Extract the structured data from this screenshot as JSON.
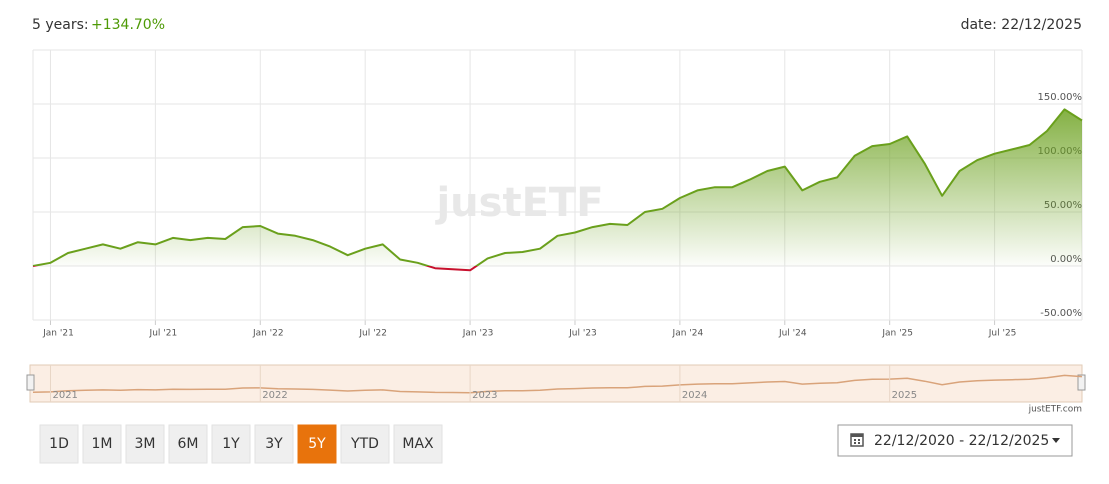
{
  "header": {
    "period": "5 years:",
    "change": "+134.70%",
    "date": "date: 22/12/2025"
  },
  "chart_data": {
    "type": "line",
    "watermark": "justETF",
    "x": [
      "2020-12",
      "2021-01",
      "2021-02",
      "2021-03",
      "2021-04",
      "2021-05",
      "2021-06",
      "2021-07",
      "2021-08",
      "2021-09",
      "2021-10",
      "2021-11",
      "2021-12",
      "2022-01",
      "2022-02",
      "2022-03",
      "2022-04",
      "2022-05",
      "2022-06",
      "2022-07",
      "2022-08",
      "2022-09",
      "2022-10",
      "2022-11",
      "2022-12",
      "2023-01",
      "2023-02",
      "2023-03",
      "2023-04",
      "2023-05",
      "2023-06",
      "2023-07",
      "2023-08",
      "2023-09",
      "2023-10",
      "2023-11",
      "2023-12",
      "2024-01",
      "2024-02",
      "2024-03",
      "2024-04",
      "2024-05",
      "2024-06",
      "2024-07",
      "2024-08",
      "2024-09",
      "2024-10",
      "2024-11",
      "2024-12",
      "2025-01",
      "2025-02",
      "2025-03",
      "2025-04",
      "2025-05",
      "2025-06",
      "2025-07",
      "2025-08",
      "2025-09",
      "2025-10",
      "2025-11",
      "2025-12"
    ],
    "series": [
      {
        "color": "#6aa01c",
        "negative_color": "#c8102e",
        "values": [
          0,
          3,
          12,
          16,
          20,
          16,
          22,
          20,
          26,
          24,
          26,
          25,
          36,
          37,
          30,
          28,
          24,
          18,
          10,
          16,
          20,
          6,
          3,
          -2,
          -3,
          -4,
          7,
          12,
          13,
          16,
          28,
          31,
          36,
          39,
          38,
          50,
          53,
          63,
          70,
          73,
          73,
          80,
          88,
          92,
          70,
          78,
          82,
          102,
          111,
          113,
          120,
          95,
          65,
          88,
          98,
          104,
          108,
          112,
          125,
          145,
          134.7
        ]
      }
    ],
    "xlim": [
      "2020-12",
      "2025-12"
    ],
    "xticks": [
      {
        "value": "2021-01",
        "label": "Jan '21"
      },
      {
        "value": "2021-07",
        "label": "Jul '21"
      },
      {
        "value": "2022-01",
        "label": "Jan '22"
      },
      {
        "value": "2022-07",
        "label": "Jul '22"
      },
      {
        "value": "2023-01",
        "label": "Jan '23"
      },
      {
        "value": "2023-07",
        "label": "Jul '23"
      },
      {
        "value": "2024-01",
        "label": "Jan '24"
      },
      {
        "value": "2024-07",
        "label": "Jul '24"
      },
      {
        "value": "2025-01",
        "label": "Jan '25"
      },
      {
        "value": "2025-07",
        "label": "Jul '25"
      }
    ],
    "ylim": [
      -50,
      200
    ],
    "yticks": [
      {
        "value": -50,
        "label": "-50.00%"
      },
      {
        "value": 0,
        "label": "0.00%"
      },
      {
        "value": 50,
        "label": "50.00%"
      },
      {
        "value": 100,
        "label": "100.00%"
      },
      {
        "value": 150,
        "label": "150.00%"
      }
    ],
    "grid": true,
    "navigator": {
      "color": "#d9a37a",
      "ticks": [
        {
          "value": "2021-01",
          "label": "2021"
        },
        {
          "value": "2022-01",
          "label": "2022"
        },
        {
          "value": "2023-01",
          "label": "2023"
        },
        {
          "value": "2024-01",
          "label": "2024"
        },
        {
          "value": "2025-01",
          "label": "2025"
        }
      ]
    },
    "credit": "justETF.com"
  },
  "controls": {
    "buttons": [
      "1D",
      "1M",
      "3M",
      "6M",
      "1Y",
      "3Y",
      "5Y",
      "YTD",
      "MAX"
    ],
    "active": "5Y",
    "range": "22/12/2020 - 22/12/2025"
  }
}
